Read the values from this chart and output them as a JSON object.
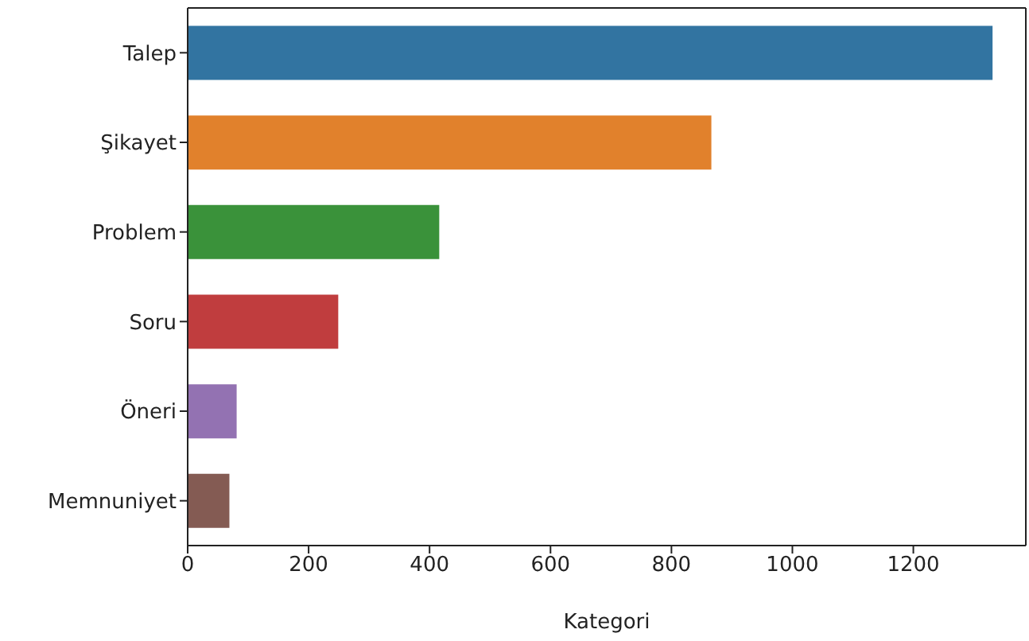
{
  "chart_data": {
    "type": "bar",
    "orientation": "horizontal",
    "xlabel": "Kategori",
    "categories": [
      "Talep",
      "Şikayet",
      "Problem",
      "Soru",
      "Öneri",
      "Memnuniyet"
    ],
    "values": [
      1331,
      866,
      416,
      249,
      81,
      69
    ],
    "colors": [
      "#3274a1",
      "#e1812c",
      "#3a923a",
      "#c03d3e",
      "#9372b2",
      "#845b53"
    ],
    "xlim": [
      0,
      1386
    ],
    "xticks": [
      0,
      200,
      400,
      600,
      800,
      1000,
      1200
    ],
    "grid": false,
    "legend": false
  }
}
